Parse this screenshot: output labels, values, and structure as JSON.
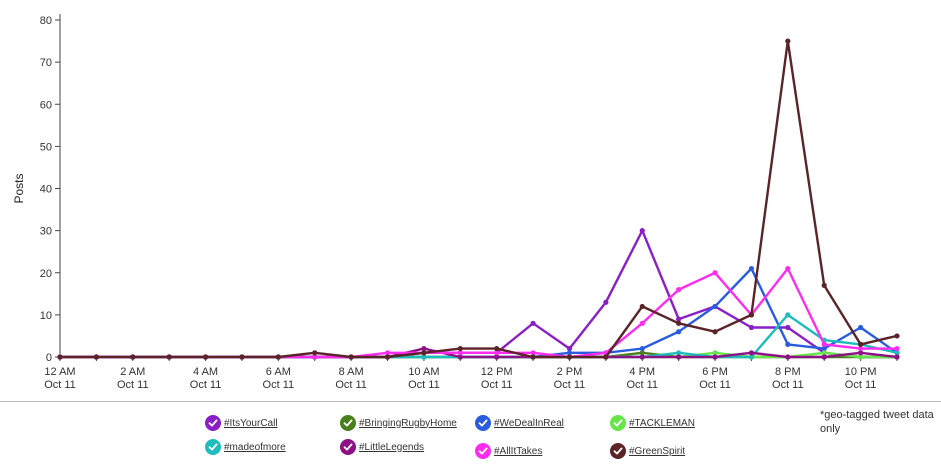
{
  "chart_data": {
    "type": "line",
    "ylabel": "Posts",
    "ylim": [
      0,
      80
    ],
    "yticks": [
      0,
      10,
      20,
      30,
      40,
      50,
      60,
      70,
      80
    ],
    "x_tick_labels": [
      {
        "x": 0,
        "line1": "12 AM",
        "line2": "Oct 11"
      },
      {
        "x": 2,
        "line1": "2 AM",
        "line2": "Oct 11"
      },
      {
        "x": 4,
        "line1": "4 AM",
        "line2": "Oct 11"
      },
      {
        "x": 6,
        "line1": "6 AM",
        "line2": "Oct 11"
      },
      {
        "x": 8,
        "line1": "8 AM",
        "line2": "Oct 11"
      },
      {
        "x": 10,
        "line1": "10 AM",
        "line2": "Oct 11"
      },
      {
        "x": 12,
        "line1": "12 PM",
        "line2": "Oct 11"
      },
      {
        "x": 14,
        "line1": "2 PM",
        "line2": "Oct 11"
      },
      {
        "x": 16,
        "line1": "4 PM",
        "line2": "Oct 11"
      },
      {
        "x": 18,
        "line1": "6 PM",
        "line2": "Oct 11"
      },
      {
        "x": 20,
        "line1": "8 PM",
        "line2": "Oct 11"
      },
      {
        "x": 22,
        "line1": "10 PM",
        "line2": "Oct 11"
      }
    ],
    "x": [
      0,
      1,
      2,
      3,
      4,
      5,
      6,
      7,
      8,
      9,
      10,
      11,
      12,
      13,
      14,
      15,
      16,
      17,
      18,
      19,
      20,
      21,
      22,
      23
    ],
    "grid": false,
    "legend_placement": "bottom",
    "series": [
      {
        "name": "#ItsYourCall",
        "color": "#8a1fc7",
        "values": [
          0,
          0,
          0,
          0,
          0,
          0,
          0,
          0,
          0,
          0,
          1,
          1,
          1,
          8,
          2,
          13,
          30,
          9,
          12,
          7,
          7,
          1,
          0,
          0
        ]
      },
      {
        "name": "#BringingRugbyHome",
        "color": "#4a7f1e",
        "values": [
          0,
          0,
          0,
          0,
          0,
          0,
          0,
          0,
          0,
          0,
          0,
          0,
          0,
          0,
          0,
          0,
          1,
          0,
          0,
          0,
          0,
          0,
          0,
          0
        ]
      },
      {
        "name": "#WeDealInReal",
        "color": "#2a5ce0",
        "values": [
          0,
          0,
          0,
          0,
          0,
          0,
          0,
          0,
          0,
          0,
          0,
          0,
          0,
          0,
          1,
          1,
          2,
          6,
          12,
          21,
          3,
          2,
          7,
          1
        ]
      },
      {
        "name": "#TACKLEMAN",
        "color": "#66e64a",
        "values": [
          0,
          0,
          0,
          0,
          0,
          0,
          0,
          0,
          0,
          0,
          0,
          0,
          0,
          0,
          0,
          0,
          0,
          0,
          1,
          0,
          0,
          1,
          0,
          0
        ]
      },
      {
        "name": "#madeofmore",
        "color": "#1fbcbc",
        "values": [
          0,
          0,
          0,
          0,
          0,
          0,
          0,
          0,
          0,
          0,
          0,
          0,
          0,
          0,
          0,
          0,
          0,
          1,
          0,
          0,
          10,
          4,
          3,
          1
        ]
      },
      {
        "name": "#LittleLegends",
        "color": "#8c1285",
        "values": [
          0,
          0,
          0,
          0,
          0,
          0,
          0,
          0,
          0,
          0,
          2,
          0,
          0,
          0,
          0,
          0,
          0,
          0,
          0,
          1,
          0,
          0,
          1,
          0
        ]
      },
      {
        "name": "#AllItTakes",
        "color": "#ff2cf0",
        "values": [
          0,
          0,
          0,
          0,
          0,
          0,
          0,
          0,
          0,
          1,
          1,
          1,
          1,
          1,
          0,
          1,
          8,
          16,
          20,
          10,
          21,
          3,
          2,
          2
        ]
      },
      {
        "name": "#GreenSpirit",
        "color": "#5a2428",
        "values": [
          0,
          0,
          0,
          0,
          0,
          0,
          0,
          1,
          0,
          0,
          1,
          2,
          2,
          0,
          0,
          0,
          12,
          8,
          6,
          10,
          75,
          17,
          3,
          5
        ]
      }
    ]
  },
  "legend": {
    "note": "*geo-tagged tweet data only"
  }
}
